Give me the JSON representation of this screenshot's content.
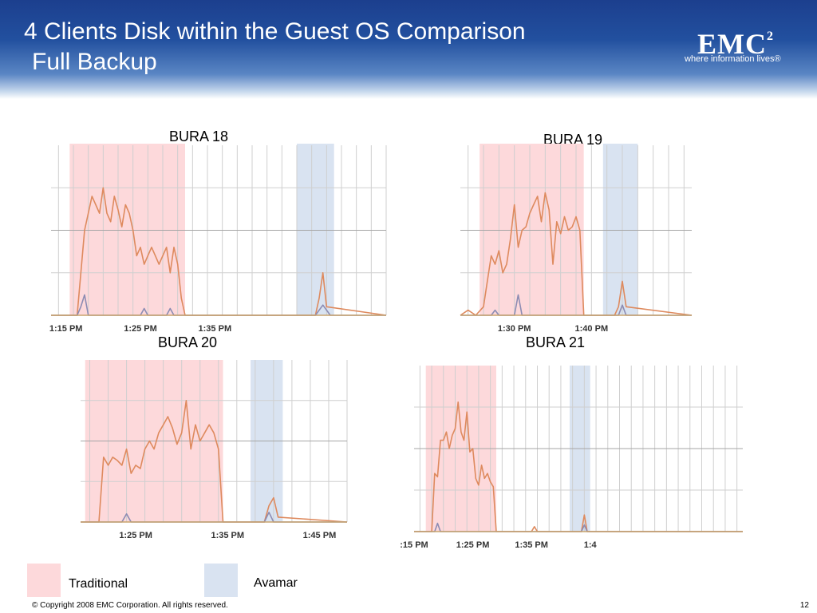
{
  "slide": {
    "title": "4 Clients  Disk within the Guest OS Comparison",
    "subtitle": "Full Backup",
    "logo": {
      "wordmark": "EMC",
      "superscript": "2",
      "tagline": "where information lives®"
    },
    "footer": "© Copyright 2008 EMC Corporation. All rights reserved.",
    "page_number": "12"
  },
  "colors": {
    "traditional_band": "#fdd9db",
    "avamar_band": "#d9e3f1",
    "primary_series": "#de8a5e",
    "secondary_series": "#8c8cb3",
    "gridline": "#cfcfcf",
    "baseline": "#c9a46d"
  },
  "legend": [
    {
      "label": "Traditional",
      "color": "#fdd9db"
    },
    {
      "label": "Avamar",
      "color": "#d9e3f1"
    }
  ],
  "chart_data": [
    {
      "type": "line",
      "title": "BURA 18",
      "x_unit": "minutes",
      "x_range": [
        73,
        118
      ],
      "ylim": [
        0,
        100
      ],
      "x_ticks": [
        {
          "label": "1:15 PM",
          "value": 75
        },
        {
          "label": "1:25 PM",
          "value": 85
        },
        {
          "label": "1:35 PM",
          "value": 95
        }
      ],
      "bands": [
        {
          "label": "Traditional",
          "start": 75.5,
          "end": 91
        },
        {
          "label": "Avamar",
          "start": 106,
          "end": 111
        }
      ],
      "series": [
        {
          "role": "primary",
          "x": [
            73,
            76.5,
            77.5,
            78.5,
            79,
            79.5,
            80,
            80.5,
            81,
            81.5,
            82,
            82.5,
            83,
            83.5,
            84,
            84.5,
            85,
            85.5,
            86,
            86.5,
            87,
            87.5,
            88,
            88.5,
            89,
            89.5,
            90,
            90.5,
            91,
            92,
            108.5,
            109,
            109.5,
            110,
            118
          ],
          "y": [
            0,
            0,
            50,
            70,
            65,
            60,
            75,
            60,
            55,
            70,
            62,
            52,
            65,
            60,
            50,
            35,
            40,
            30,
            35,
            40,
            35,
            30,
            35,
            40,
            25,
            40,
            30,
            10,
            0,
            0,
            0,
            10,
            25,
            5,
            0
          ]
        },
        {
          "role": "secondary",
          "x": [
            73,
            76.5,
            77,
            77.5,
            78,
            85,
            85.5,
            86,
            88.5,
            89,
            89.5,
            108.5,
            109.5,
            110.5,
            118
          ],
          "y": [
            0,
            0,
            5,
            12,
            0,
            0,
            4,
            0,
            0,
            4,
            0,
            0,
            6,
            0,
            0
          ]
        }
      ]
    },
    {
      "type": "line",
      "title": "BURA 19",
      "x_unit": "minutes",
      "x_range": [
        83,
        113
      ],
      "ylim": [
        0,
        100
      ],
      "x_ticks": [
        {
          "label": "1:30 PM",
          "value": 90
        },
        {
          "label": "1:40 PM",
          "value": 100
        }
      ],
      "bands": [
        {
          "label": "Traditional",
          "start": 85.5,
          "end": 99
        },
        {
          "label": "Avamar",
          "start": 101.5,
          "end": 106
        }
      ],
      "series": [
        {
          "role": "primary",
          "x": [
            83,
            84,
            85,
            86,
            86.5,
            87,
            87.5,
            88,
            88.5,
            89,
            89.5,
            90,
            90.5,
            91,
            91.5,
            92,
            92.5,
            93,
            93.5,
            94,
            94.5,
            95,
            95.5,
            96,
            96.5,
            97,
            97.5,
            98,
            98.5,
            99,
            103,
            103.5,
            104,
            104.5,
            113
          ],
          "y": [
            0,
            3,
            0,
            5,
            20,
            35,
            30,
            38,
            25,
            30,
            45,
            65,
            40,
            50,
            52,
            60,
            65,
            70,
            55,
            72,
            62,
            30,
            55,
            48,
            58,
            50,
            52,
            58,
            50,
            0,
            0,
            5,
            20,
            5,
            0
          ]
        },
        {
          "role": "secondary",
          "x": [
            83,
            87,
            87.5,
            88,
            90,
            90.5,
            91,
            103.5,
            104,
            104.5,
            113
          ],
          "y": [
            0,
            0,
            3,
            0,
            0,
            12,
            0,
            0,
            6,
            0,
            0
          ]
        }
      ]
    },
    {
      "type": "line",
      "title": "BURA 20",
      "x_unit": "minutes",
      "x_range": [
        79,
        108
      ],
      "ylim": [
        0,
        100
      ],
      "x_ticks": [
        {
          "label": "1:25 PM",
          "value": 85
        },
        {
          "label": "1:35 PM",
          "value": 95
        },
        {
          "label": "1:45 PM",
          "value": 105
        }
      ],
      "bands": [
        {
          "label": "Traditional",
          "start": 79.5,
          "end": 94.5
        },
        {
          "label": "Avamar",
          "start": 97.5,
          "end": 101
        }
      ],
      "series": [
        {
          "role": "primary",
          "x": [
            79,
            81,
            81.5,
            82,
            82.5,
            83,
            83.5,
            84,
            84.5,
            85,
            85.5,
            86,
            86.5,
            87,
            87.5,
            88,
            88.5,
            89,
            89.5,
            90,
            90.5,
            91,
            91.5,
            92,
            92.5,
            93,
            93.5,
            94,
            94.5,
            95,
            99,
            99.5,
            100,
            100.5,
            108
          ],
          "y": [
            0,
            0,
            40,
            35,
            40,
            38,
            35,
            45,
            30,
            35,
            33,
            45,
            50,
            45,
            55,
            60,
            65,
            58,
            48,
            55,
            75,
            45,
            60,
            50,
            55,
            60,
            55,
            45,
            0,
            0,
            0,
            10,
            15,
            3,
            0
          ]
        },
        {
          "role": "secondary",
          "x": [
            79,
            83.5,
            84,
            84.5,
            99,
            99.5,
            100,
            108
          ],
          "y": [
            0,
            0,
            5,
            0,
            0,
            6,
            0,
            0
          ]
        }
      ]
    },
    {
      "type": "line",
      "title": "BURA 21",
      "x_unit": "minutes",
      "x_range": [
        75,
        131
      ],
      "ylim": [
        0,
        100
      ],
      "x_ticks": [
        {
          "label": ":15 PM",
          "value": 75
        },
        {
          "label": "1:25 PM",
          "value": 85
        },
        {
          "label": "1:35 PM",
          "value": 95
        },
        {
          "label": "1:4",
          "value": 105
        }
      ],
      "bands": [
        {
          "label": "Traditional",
          "start": 77,
          "end": 89
        },
        {
          "label": "Avamar",
          "start": 101.5,
          "end": 105
        }
      ],
      "series": [
        {
          "role": "primary",
          "x": [
            75,
            78,
            78.5,
            79,
            79.5,
            80,
            80.5,
            81,
            81.5,
            82,
            82.5,
            83,
            83.5,
            84,
            84.5,
            85,
            85.5,
            86,
            86.5,
            87,
            87.5,
            88,
            88.5,
            89,
            95,
            95.5,
            96,
            103.5,
            104,
            104.5,
            131
          ],
          "y": [
            0,
            0,
            35,
            33,
            55,
            55,
            60,
            50,
            58,
            62,
            78,
            60,
            55,
            72,
            48,
            50,
            32,
            28,
            40,
            32,
            35,
            30,
            27,
            0,
            0,
            3,
            0,
            0,
            10,
            0,
            0
          ]
        },
        {
          "role": "secondary",
          "x": [
            75,
            78.5,
            79,
            79.5,
            103.5,
            104,
            104.5,
            131
          ],
          "y": [
            0,
            0,
            5,
            0,
            0,
            4,
            0,
            0
          ]
        }
      ]
    }
  ]
}
